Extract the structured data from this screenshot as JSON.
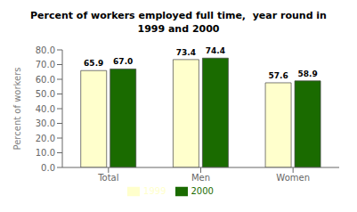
{
  "chart_data": {
    "type": "bar",
    "title": "Percent of workers employed full time,  year round in\n1999 and 2000",
    "categories": [
      "Total",
      "Men",
      "Women"
    ],
    "series": [
      {
        "name": "1999",
        "color": "#FFFFCC",
        "values": [
          65.9,
          73.4,
          57.6
        ],
        "value_labels": [
          "65.9",
          "73.4",
          "57.6"
        ]
      },
      {
        "name": "2000",
        "color": "#1a6b00",
        "values": [
          67.0,
          74.4,
          58.9
        ],
        "value_labels": [
          "67.0",
          "74.4",
          "58.9"
        ]
      }
    ],
    "ylabel": "Percent of workers",
    "ylim": [
      0,
      80
    ],
    "yticks": [
      {
        "value": 0,
        "label": "0.0"
      },
      {
        "value": 10,
        "label": "10.0"
      },
      {
        "value": 20,
        "label": "20.0"
      },
      {
        "value": 30,
        "label": "30.0"
      },
      {
        "value": 40,
        "label": "40.0"
      },
      {
        "value": 50,
        "label": "50.0"
      },
      {
        "value": 60,
        "label": "60.0"
      },
      {
        "value": 70,
        "label": "70.0"
      },
      {
        "value": 80,
        "label": "80.0"
      }
    ],
    "grid": false,
    "legend": "bottom",
    "data_labels": true
  }
}
